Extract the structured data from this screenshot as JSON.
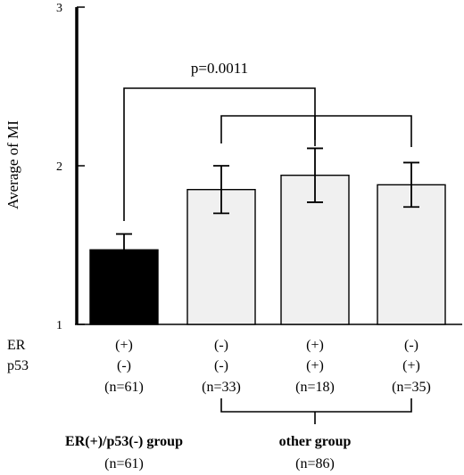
{
  "chart_data": {
    "type": "bar",
    "ylabel": "Average of MI",
    "ylim": [
      1,
      3
    ],
    "yticks": [
      "1",
      "2",
      "3"
    ],
    "grid": false,
    "categories": [
      "ER(+)/p53(-)",
      "ER(-)/p53(-)",
      "ER(+)/p53(+)",
      "ER(-)/p53(+)"
    ],
    "values": [
      1.47,
      1.85,
      1.94,
      1.88
    ],
    "errors": [
      0.1,
      0.15,
      0.17,
      0.14
    ],
    "bar_colors": [
      "#000000",
      "#f0f0f0",
      "#f0f0f0",
      "#f0f0f0"
    ],
    "row_labels": {
      "er": "ER",
      "p53": "p53"
    },
    "er_status": [
      "(+)",
      "(-)",
      "(+)",
      "(-)"
    ],
    "p53_status": [
      "(-)",
      "(-)",
      "(+)",
      "(+)"
    ],
    "n_labels": [
      "(n=61)",
      "(n=33)",
      "(n=18)",
      "(n=35)"
    ],
    "p_value_label": "p=0.0011",
    "groups": [
      {
        "name": "ER(+)/p53(-) group",
        "n": "(n=61)"
      },
      {
        "name": "other group",
        "n": "(n=86)"
      }
    ]
  }
}
